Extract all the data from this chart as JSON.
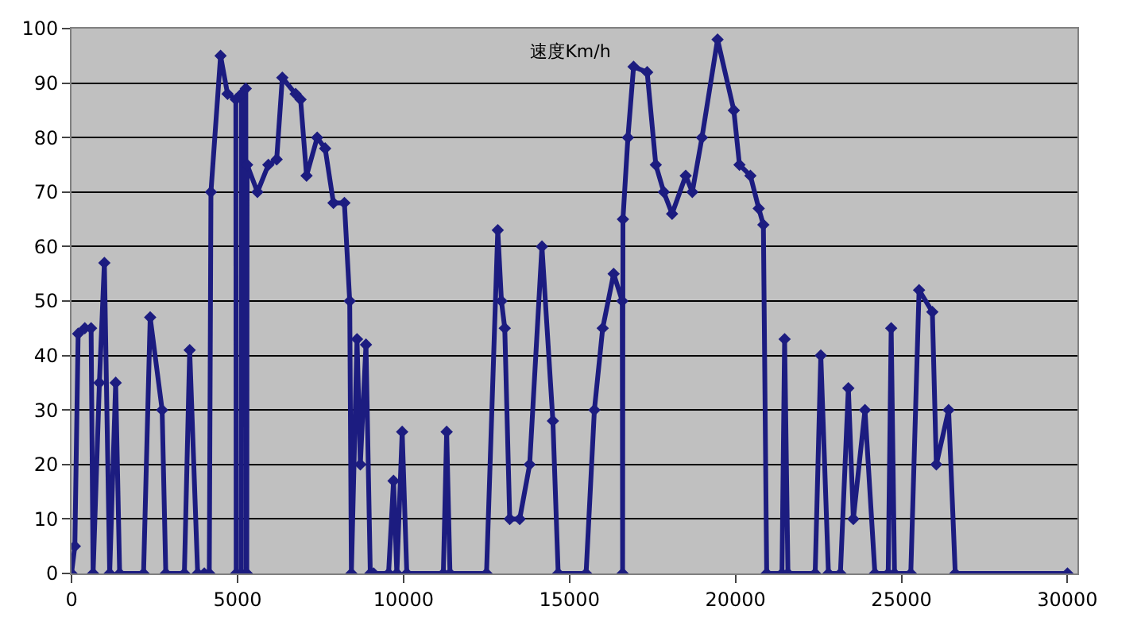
{
  "chart_data": {
    "type": "line",
    "title": "速度Km/h",
    "x": [
      0,
      100,
      200,
      400,
      590,
      650,
      840,
      990,
      1150,
      1330,
      1450,
      2170,
      2370,
      2730,
      2840,
      3400,
      3560,
      3800,
      4000,
      4150,
      4200,
      4490,
      4700,
      4950,
      4960,
      5110,
      5120,
      5250,
      5260,
      5280,
      5290,
      5600,
      5930,
      6180,
      6350,
      6750,
      6900,
      7080,
      7400,
      7640,
      7890,
      8220,
      8380,
      8430,
      8600,
      8700,
      8870,
      9000,
      9100,
      9550,
      9700,
      9800,
      9960,
      10100,
      11200,
      11300,
      11400,
      12500,
      12840,
      12950,
      13050,
      13200,
      13500,
      13800,
      14170,
      14500,
      14660,
      15500,
      15750,
      16000,
      16330,
      16590,
      16600,
      16610,
      16760,
      16930,
      17340,
      17600,
      17840,
      18090,
      18500,
      18700,
      18990,
      19460,
      19950,
      20120,
      20450,
      20700,
      20840,
      20940,
      21400,
      21480,
      21580,
      22400,
      22570,
      22800,
      23160,
      23400,
      23550,
      23900,
      24200,
      24600,
      24690,
      24790,
      25280,
      25530,
      25930,
      26050,
      26420,
      26620,
      30000
    ],
    "series": [
      {
        "color": "#1c1c80",
        "values": [
          0,
          5,
          44,
          45,
          45,
          0,
          35,
          57,
          0,
          35,
          0,
          0,
          47,
          30,
          0,
          0,
          41,
          0,
          0,
          0,
          70,
          95,
          88,
          87,
          0,
          0,
          88,
          89,
          0,
          0,
          75,
          70,
          75,
          76,
          91,
          88,
          87,
          73,
          80,
          78,
          68,
          68,
          50,
          0,
          43,
          20,
          42,
          0,
          0,
          0,
          17,
          0,
          26,
          0,
          0,
          26,
          0,
          0,
          63,
          50,
          45,
          10,
          10,
          20,
          60,
          28,
          0,
          0,
          30,
          45,
          55,
          50,
          0,
          65,
          80,
          93,
          92,
          75,
          70,
          66,
          73,
          70,
          80,
          98,
          85,
          75,
          73,
          67,
          64,
          0,
          0,
          43,
          0,
          0,
          40,
          0,
          0,
          34,
          10,
          30,
          0,
          0,
          45,
          0,
          0,
          52,
          48,
          20,
          30,
          0,
          0
        ]
      }
    ],
    "xlim": [
      0,
      30300
    ],
    "ylim": [
      0,
      100
    ],
    "xticks": [
      0,
      5000,
      10000,
      15000,
      20000,
      25000,
      30000
    ],
    "yticks": [
      0,
      10,
      20,
      30,
      40,
      50,
      60,
      70,
      80,
      90,
      100
    ],
    "grid": "y",
    "marker": "diamond",
    "line_style": "solid"
  }
}
